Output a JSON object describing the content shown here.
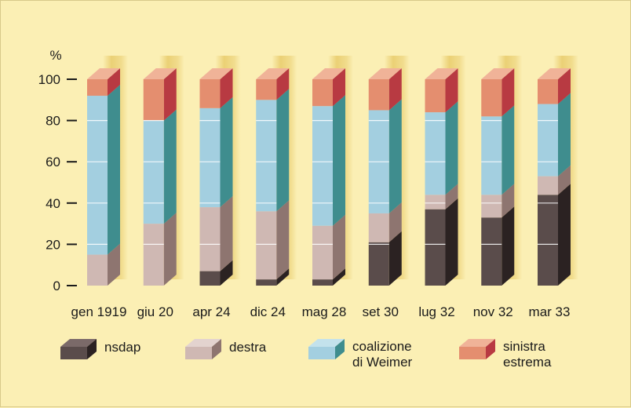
{
  "chart_data": {
    "type": "bar",
    "stacked": true,
    "ylabel": "%",
    "ylim": [
      0,
      100
    ],
    "yticks": [
      0,
      20,
      40,
      60,
      80,
      100
    ],
    "categories": [
      "gen 1919",
      "giu 20",
      "apr 24",
      "dic 24",
      "mag 28",
      "set 30",
      "lug 32",
      "nov 32",
      "mar 33"
    ],
    "series": [
      {
        "key": "nsdap",
        "name": "nsdap",
        "values": [
          0,
          0,
          7,
          3,
          3,
          21,
          37,
          33,
          44
        ]
      },
      {
        "key": "destra",
        "name": "destra",
        "values": [
          15,
          30,
          31,
          33,
          26,
          14,
          7,
          11,
          9
        ]
      },
      {
        "key": "weimar",
        "name": "coalizione di Weimer",
        "values": [
          77,
          50,
          48,
          54,
          58,
          50,
          40,
          38,
          35
        ]
      },
      {
        "key": "sinistra",
        "name": "sinistra estrema",
        "values": [
          8,
          20,
          14,
          10,
          13,
          15,
          16,
          18,
          12
        ]
      }
    ],
    "legend": [
      {
        "key": "nsdap",
        "lines": [
          "nsdap"
        ]
      },
      {
        "key": "destra",
        "lines": [
          "destra"
        ]
      },
      {
        "key": "weimar",
        "lines": [
          "coalizione",
          "di Weimer"
        ]
      },
      {
        "key": "sinistra",
        "lines": [
          "sinistra",
          "estrema"
        ]
      }
    ],
    "colors": {
      "nsdap": {
        "front": "#5a4c4b",
        "side": "#2b2222",
        "top": "#7b6a69"
      },
      "destra": {
        "front": "#cfb8b3",
        "side": "#8e7570",
        "top": "#e3d3cf"
      },
      "weimar": {
        "front": "#a3cfe0",
        "side": "#3f8d8e",
        "top": "#c3e2ec"
      },
      "sinistra": {
        "front": "#e48e6f",
        "side": "#b83a42",
        "top": "#f0b398"
      },
      "shadow": "#e9cd6e",
      "gridline": "#ffffff",
      "axis": "#1a1a1a"
    }
  }
}
